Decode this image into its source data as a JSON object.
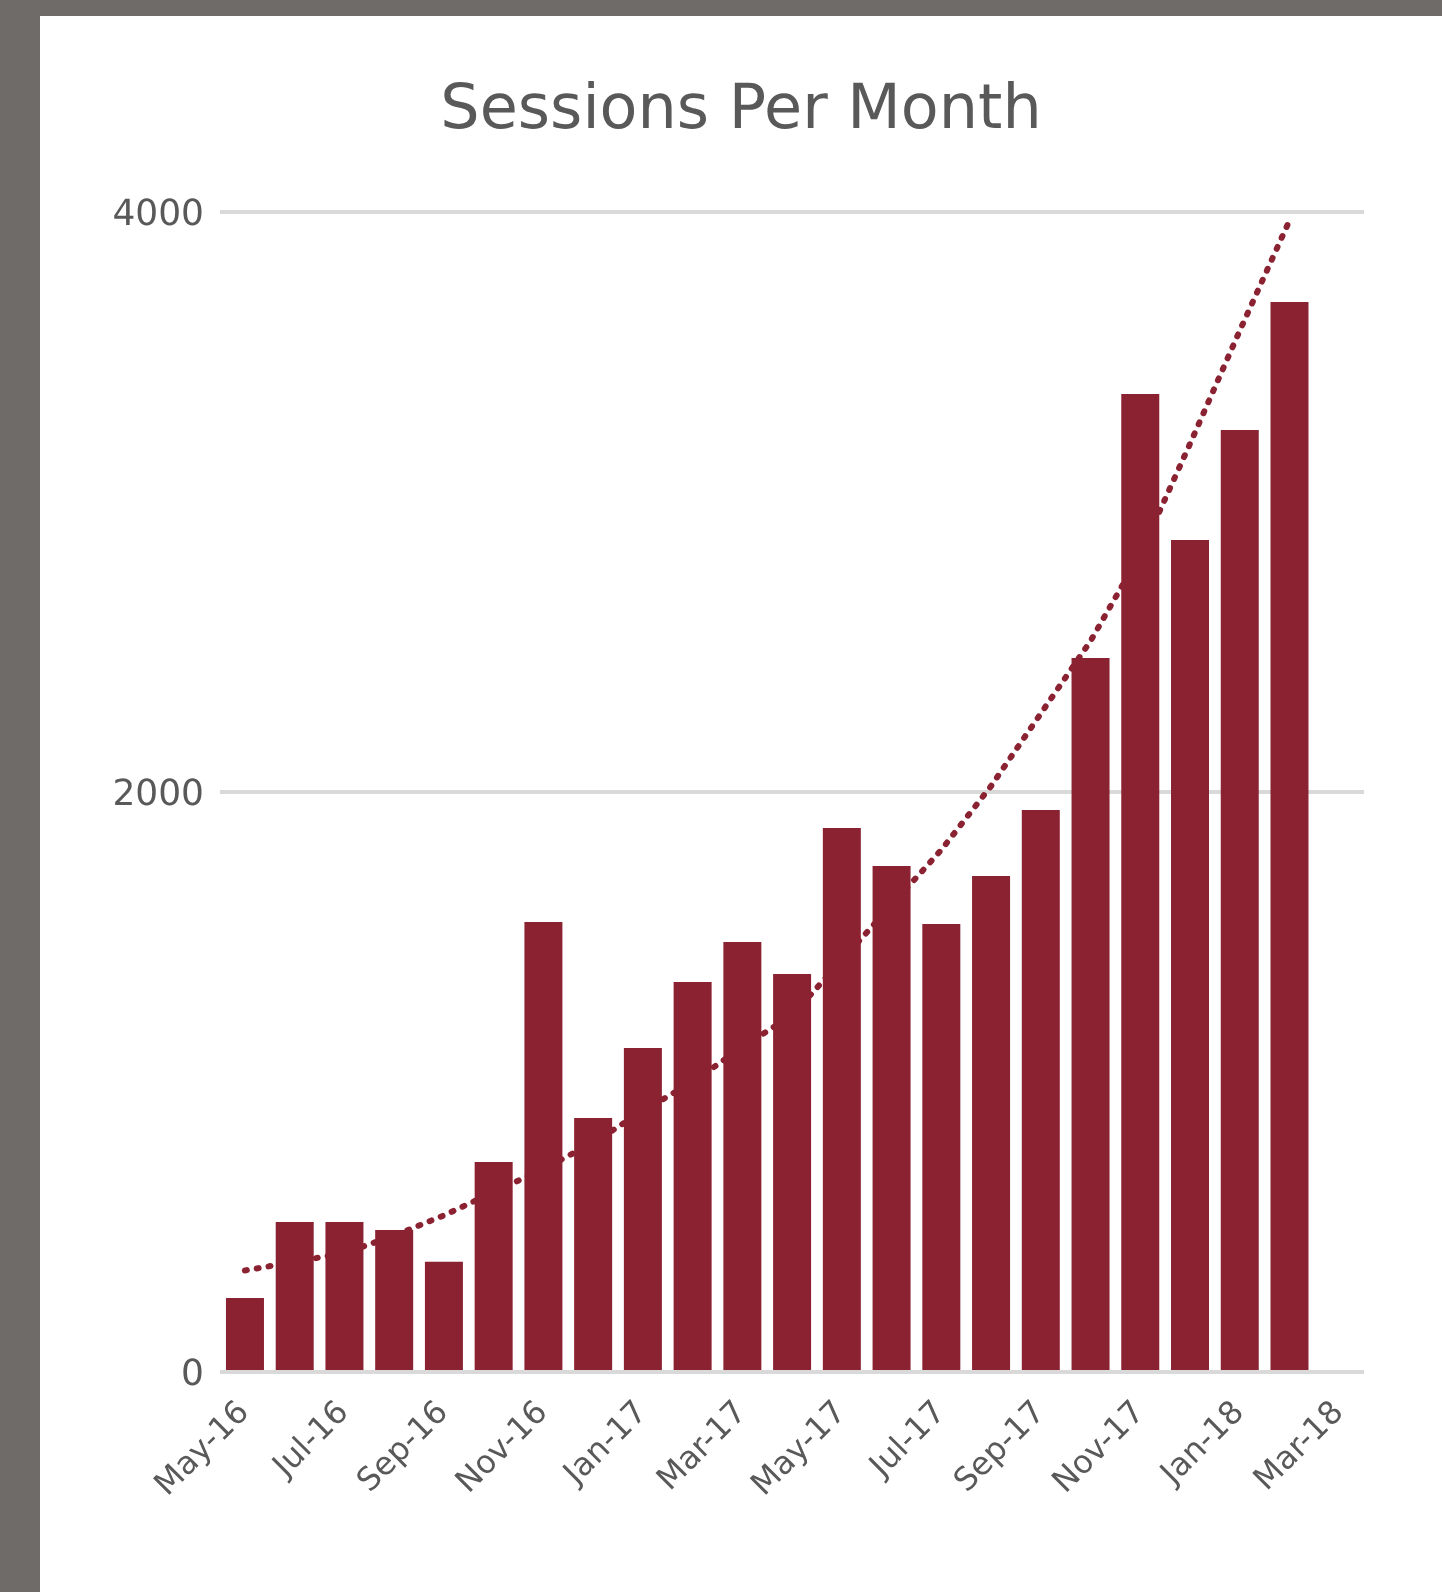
{
  "chart_data": {
    "type": "bar",
    "title": "Sessions Per Month",
    "categories": [
      "May-16",
      null,
      "Jul-16",
      null,
      "Sep-16",
      null,
      "Nov-16",
      null,
      "Jan-17",
      null,
      "Mar-17",
      null,
      "May-17",
      null,
      "Jul-17",
      null,
      "Sep-17",
      null,
      "Nov-17",
      null,
      "Jan-18",
      null,
      "Mar-18"
    ],
    "series": [
      {
        "color": "#8b2232",
        "values": [
          255,
          517,
          517,
          490,
          380,
          724,
          1552,
          876,
          1117,
          1345,
          1483,
          1372,
          1876,
          1745,
          1545,
          1710,
          1938,
          2462,
          3372,
          2869,
          3248,
          3690,
          null
        ]
      },
      {
        "type": "line",
        "color": "#8b2232",
        "line_style": "dotted",
        "values": [
          350,
          380,
          410,
          470,
          540,
          620,
          700,
          790,
          900,
          1000,
          1120,
          1230,
          1420,
          1610,
          1800,
          2020,
          2270,
          2520,
          2820,
          3200,
          3590,
          3970,
          null
        ]
      }
    ],
    "ylim": [
      0,
      4000
    ],
    "yticks": [
      0,
      2000,
      4000
    ],
    "grid": "y"
  }
}
